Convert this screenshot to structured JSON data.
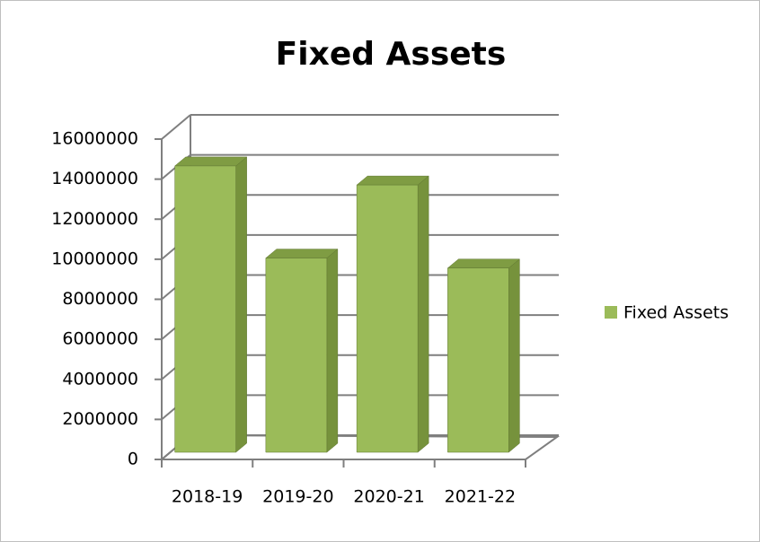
{
  "chart_data": {
    "type": "bar3d",
    "title": "Fixed Assets",
    "categories": [
      "2018-19",
      "2019-20",
      "2020-21",
      "2021-22"
    ],
    "series": [
      {
        "name": "Fixed Assets",
        "color": "#9bbb59",
        "values": [
          14300000,
          9700000,
          13350000,
          9200000
        ]
      }
    ],
    "ylim": [
      0,
      16000000
    ],
    "yticks": [
      0,
      2000000,
      4000000,
      6000000,
      8000000,
      10000000,
      12000000,
      14000000,
      16000000
    ],
    "grid": true,
    "legend": "right"
  }
}
